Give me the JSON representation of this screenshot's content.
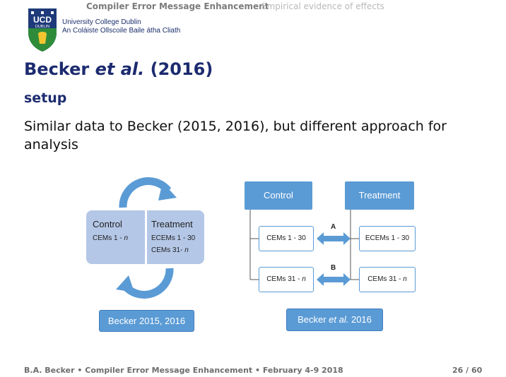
{
  "nav": {
    "active": "Compiler Error Message Enhancement",
    "inactive": "Empirical evidence of effects"
  },
  "university": {
    "logo_text": "UCD DUBLIN",
    "name": "University College Dublin",
    "irish_name": "An Coláiste Ollscoile Baile átha Cliath"
  },
  "slide": {
    "title_a": "Becker ",
    "title_em": "et al.",
    "title_b": " (2016)",
    "subtitle": "setup",
    "body": "Similar data to Becker (2015, 2016), but different approach for analysis"
  },
  "left_diagram": {
    "control_label": "Control",
    "control_cems_a": "CEMs 1 - ",
    "control_cems_n": "n",
    "treatment_label": "Treatment",
    "treatment_ecems": "ECEMs 1 - 30",
    "treatment_cems_a": "CEMs 31- ",
    "treatment_cems_n": "n",
    "caption": "Becker 2015, 2016"
  },
  "right_diagram": {
    "control_header": "Control",
    "treatment_header": "Treatment",
    "cems_1_30": "CEMs 1 - 30",
    "ecems_1_30": "ECEMs 1 - 30",
    "cems_31_a": "CEMs 31 - ",
    "cems_31_n": "n",
    "cems_31_b_a": "CEMs 31 - ",
    "cems_31_b_n": "n",
    "arrow_a": "A",
    "arrow_b": "B",
    "caption_a": "Becker ",
    "caption_em": "et al.",
    "caption_b": " 2016"
  },
  "footer": {
    "left": "B.A. Becker • Compiler Error Message Enhancement • February 4-9 2018",
    "page": "26 / 60"
  },
  "colors": {
    "navy": "#1c2b6f",
    "blue": "#5b9bd5",
    "light_blue": "#b4c7e7",
    "green": "#2e7d32"
  }
}
